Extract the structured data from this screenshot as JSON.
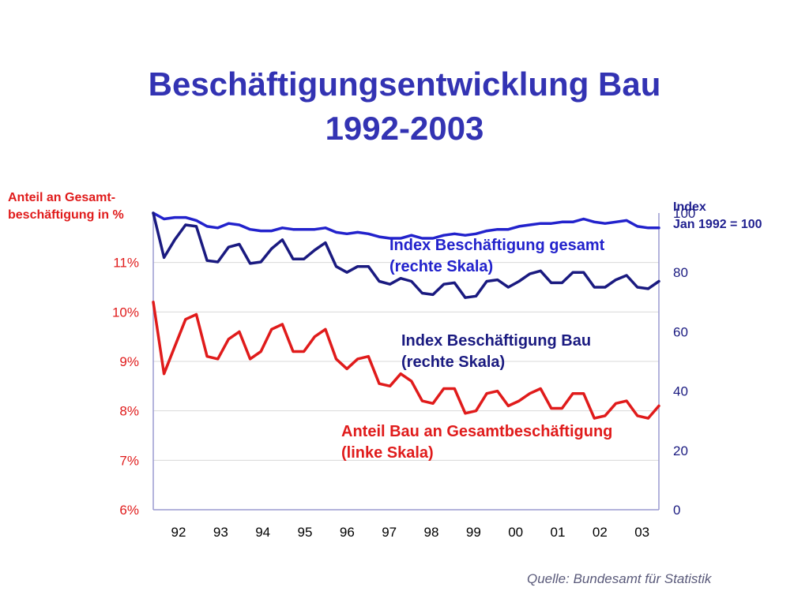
{
  "title": {
    "line1": "Beschäftigungsentwicklung Bau",
    "line2": "1992-2003"
  },
  "axis_captions": {
    "left_line1": "Anteil an Gesamt-",
    "left_line2": "beschäftigung in %",
    "right_line1": "Index",
    "right_line2": "Jan 1992 = 100"
  },
  "annotations": {
    "gesamt_line1": "Index Beschäftigung gesamt",
    "gesamt_line2": "(rechte Skala)",
    "bau_line1": "Index Beschäftigung Bau",
    "bau_line2": "(rechte Skala)",
    "anteil_line1": "Anteil Bau an Gesamtbeschäftigung",
    "anteil_line2": "(linke Skala)"
  },
  "source": "Quelle: Bundesamt für Statistik",
  "colors": {
    "title": "#3333b3",
    "anteil": "#e01b1b",
    "bau": "#1a1a80",
    "gesamt": "#2222cc",
    "axis": "#9a9ad0",
    "grid": "#d8d8d8"
  },
  "chart_data": {
    "type": "line",
    "x_ticks": [
      "92",
      "93",
      "94",
      "95",
      "96",
      "97",
      "98",
      "99",
      "00",
      "01",
      "02",
      "03"
    ],
    "y_left": {
      "range": [
        6,
        12
      ],
      "ticks": [
        6,
        7,
        8,
        9,
        10,
        11
      ],
      "tick_labels": [
        "6%",
        "7%",
        "8%",
        "9%",
        "10%",
        "11%"
      ]
    },
    "y_right": {
      "range": [
        0,
        100
      ],
      "ticks": [
        0,
        20,
        40,
        60,
        80,
        100
      ],
      "tick_labels": [
        "0",
        "20",
        "40",
        "60",
        "80",
        "100"
      ]
    },
    "grid": "horizontal",
    "series": [
      {
        "key": "gesamt",
        "axis": "right",
        "values": [
          100,
          98,
          98.5,
          98.5,
          97.5,
          95.5,
          95,
          96.5,
          96,
          94.5,
          94,
          94,
          95,
          94.5,
          94.5,
          94.5,
          95,
          93.5,
          93,
          93.5,
          93,
          92,
          91.5,
          91.5,
          92.5,
          91.5,
          91.5,
          92.5,
          93,
          92.5,
          93,
          94,
          94.5,
          94.5,
          95.5,
          96,
          96.5,
          96.5,
          97,
          97,
          98,
          97,
          96.5,
          97,
          97.5,
          95.5,
          95,
          95
        ]
      },
      {
        "key": "bau",
        "axis": "right",
        "values": [
          100,
          85,
          91,
          96,
          95.5,
          84,
          83.5,
          88.5,
          89.5,
          83,
          83.5,
          88,
          91,
          84.5,
          84.5,
          87.5,
          90,
          82,
          80,
          82,
          82,
          77,
          76,
          78,
          77,
          73,
          72.5,
          76,
          76.5,
          71.5,
          72,
          77,
          77.5,
          75,
          77,
          79.5,
          80.5,
          76.5,
          76.5,
          80,
          80,
          75,
          75,
          77.5,
          79,
          75,
          74.5,
          77
        ]
      },
      {
        "key": "anteil",
        "axis": "left",
        "values": [
          10.2,
          8.75,
          9.3,
          9.85,
          9.95,
          9.1,
          9.05,
          9.45,
          9.6,
          9.05,
          9.2,
          9.65,
          9.75,
          9.2,
          9.2,
          9.5,
          9.65,
          9.05,
          8.85,
          9.05,
          9.1,
          8.55,
          8.5,
          8.75,
          8.6,
          8.2,
          8.15,
          8.45,
          8.45,
          7.95,
          8,
          8.35,
          8.4,
          8.1,
          8.2,
          8.35,
          8.45,
          8.05,
          8.05,
          8.35,
          8.35,
          7.85,
          7.9,
          8.15,
          8.2,
          7.9,
          7.85,
          8.1
        ]
      }
    ]
  }
}
